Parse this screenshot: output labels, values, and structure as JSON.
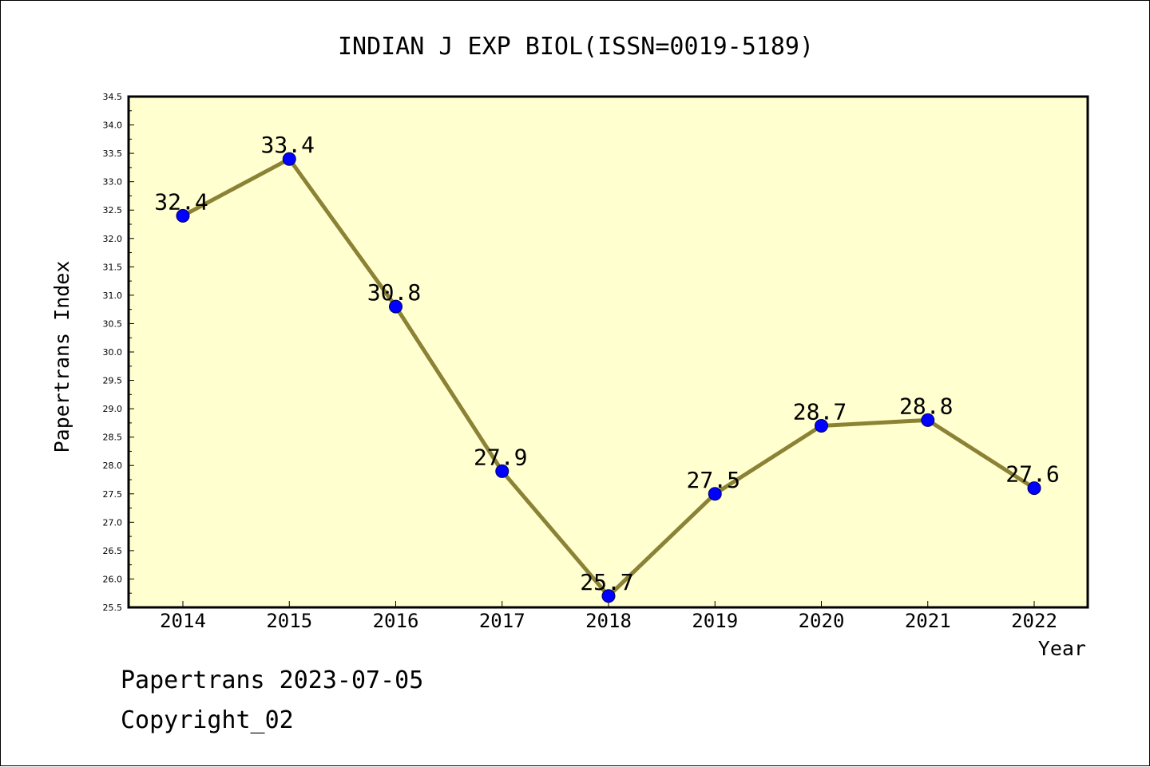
{
  "chart_data": {
    "type": "line",
    "title": "INDIAN J EXP BIOL(ISSN=0019-5189)",
    "xlabel": "Year",
    "ylabel": "Papertrans Index",
    "categories": [
      "2014",
      "2015",
      "2016",
      "2017",
      "2018",
      "2019",
      "2020",
      "2021",
      "2022"
    ],
    "values": [
      32.4,
      33.4,
      30.8,
      27.9,
      25.7,
      27.5,
      28.7,
      28.8,
      27.6
    ],
    "data_labels": [
      "32.4",
      "33.4",
      "30.8",
      "27.9",
      "25.7",
      "27.5",
      "28.7",
      "28.8",
      "27.6"
    ],
    "ylim": [
      25.5,
      34.5
    ],
    "ytick_step": 0.5,
    "yticks": [
      "25.5",
      "26.0",
      "26.5",
      "27.0",
      "27.5",
      "28.0",
      "28.5",
      "29.0",
      "29.5",
      "30.0",
      "30.5",
      "31.0",
      "31.5",
      "32.0",
      "32.5",
      "33.0",
      "33.5",
      "34.0",
      "34.5"
    ],
    "grid": false,
    "legend": "none",
    "colors": {
      "plot_background": "#ffffd0",
      "line": "#8b8235",
      "marker": "#0000ff",
      "axis": "#000000"
    }
  },
  "footer": {
    "line1": "Papertrans 2023-07-05",
    "line2": "Copyright_02"
  }
}
